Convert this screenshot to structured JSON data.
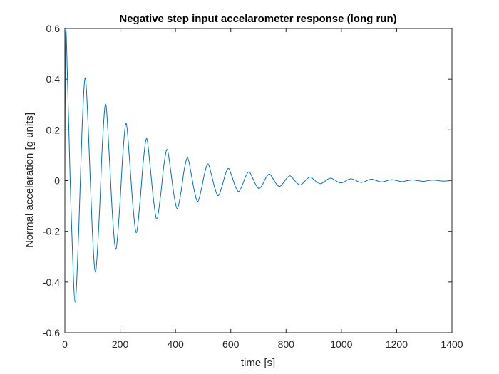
{
  "chart_data": {
    "type": "line",
    "title": "Negative step input accelarometer response (long run)",
    "xlabel": "time [s]",
    "ylabel": "Normal accelaration [g units]",
    "xlim": [
      0,
      1400
    ],
    "ylim": [
      -0.6,
      0.6
    ],
    "xticks": [
      "0",
      "200",
      "400",
      "600",
      "800",
      "1000",
      "1200",
      "1400"
    ],
    "yticks": [
      "-0.6",
      "-0.4",
      "-0.2",
      "0",
      "0.2",
      "0.4",
      "0.6"
    ],
    "grid": false,
    "line_color": "#0072BD",
    "series": [
      {
        "x": [
          0,
          3,
          10,
          18,
          25,
          37,
          50,
          62,
          74,
          86,
          99,
          111,
          124,
          136,
          148,
          160,
          173,
          185,
          198,
          210,
          222,
          234,
          247,
          259,
          272,
          284,
          296,
          308,
          321,
          333,
          346,
          358,
          370,
          382,
          395,
          407,
          420,
          432,
          444,
          456,
          469,
          481,
          494,
          506,
          518,
          530,
          543,
          555,
          568,
          580,
          592,
          604,
          617,
          629,
          642,
          654,
          666,
          678,
          691,
          703,
          716,
          728,
          740,
          752,
          765,
          777,
          790,
          802,
          814,
          826,
          839,
          851,
          864,
          876,
          888,
          900,
          913,
          925,
          938,
          950,
          962,
          974,
          987,
          999,
          1012,
          1024,
          1036,
          1048,
          1061,
          1073,
          1086,
          1098,
          1110,
          1122,
          1135,
          1147,
          1160,
          1172,
          1184,
          1196,
          1209,
          1221,
          1234,
          1246,
          1258,
          1270,
          1283,
          1295,
          1308,
          1320,
          1332,
          1344,
          1357,
          1369,
          1382,
          1394,
          1400
        ],
        "y": [
          0,
          0.58,
          0.38,
          0.05,
          -0.2,
          -0.48,
          -0.2,
          0.2,
          0.405,
          0.17,
          -0.19,
          -0.36,
          -0.15,
          0.15,
          0.302,
          0.11,
          -0.15,
          -0.27,
          -0.11,
          0.11,
          0.226,
          0.08,
          -0.11,
          -0.205,
          -0.08,
          0.08,
          0.166,
          0.06,
          -0.08,
          -0.152,
          -0.06,
          0.06,
          0.123,
          0.045,
          -0.06,
          -0.11,
          -0.045,
          0.045,
          0.09,
          0.032,
          -0.045,
          -0.082,
          -0.032,
          0.032,
          0.066,
          0.024,
          -0.032,
          -0.059,
          -0.024,
          0.024,
          0.048,
          0.017,
          -0.024,
          -0.043,
          -0.017,
          0.017,
          0.035,
          0.013,
          -0.017,
          -0.031,
          -0.013,
          0.013,
          0.026,
          0.009,
          -0.013,
          -0.023,
          -0.009,
          0.009,
          0.019,
          0.007,
          -0.009,
          -0.017,
          -0.007,
          0.007,
          0.014,
          0.005,
          -0.007,
          -0.012,
          -0.005,
          0.005,
          0.01,
          0.004,
          -0.005,
          -0.009,
          -0.004,
          0.004,
          0.007,
          0.003,
          -0.004,
          -0.007,
          -0.003,
          0.003,
          0.006,
          0.002,
          -0.003,
          -0.005,
          -0.002,
          0.002,
          0.004,
          0.001,
          -0.002,
          -0.004,
          -0.001,
          0.001,
          0.003,
          0.001,
          -0.001,
          -0.003,
          -0.001,
          0.001,
          0.002,
          0.001,
          -0.001,
          -0.002,
          -0.001,
          0,
          0
        ]
      }
    ]
  }
}
